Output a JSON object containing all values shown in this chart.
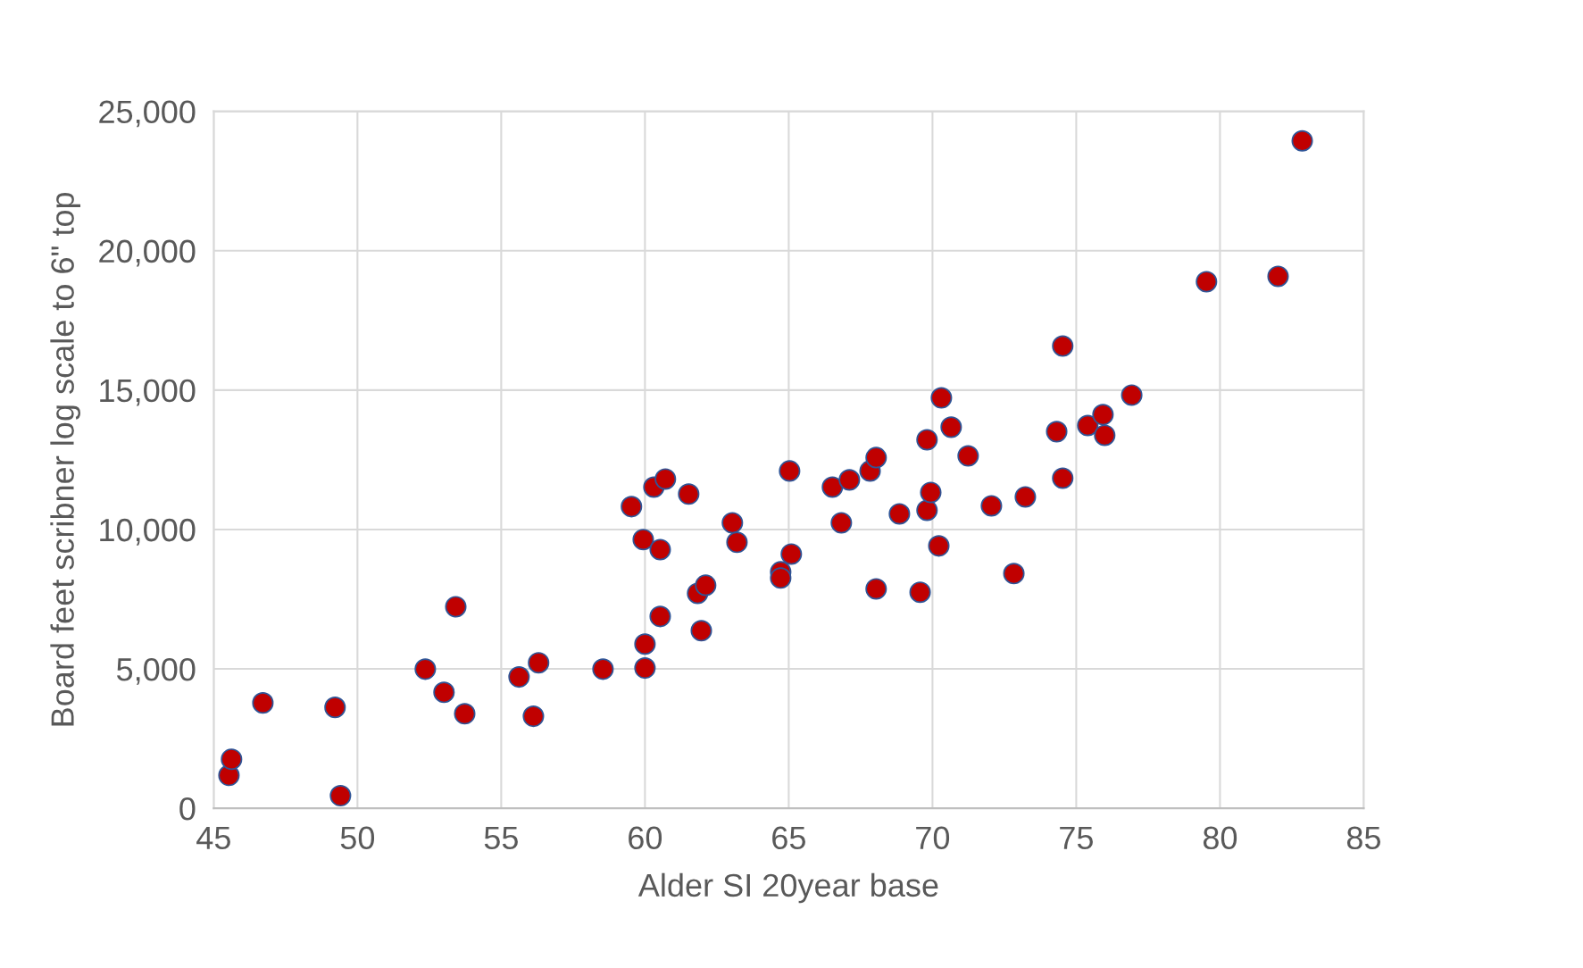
{
  "chart_data": {
    "type": "scatter",
    "xlabel": "Alder SI 20year base",
    "ylabel": "Board feet scribner log scale to 6\" top",
    "x": [
      45.53,
      45.62,
      46.71,
      49.22,
      49.41,
      52.36,
      53.01,
      53.42,
      53.73,
      55.62,
      56.12,
      56.3,
      58.54,
      59.53,
      59.94,
      60.0,
      60.0,
      60.31,
      60.53,
      60.53,
      60.71,
      61.52,
      61.83,
      61.96,
      62.11,
      63.04,
      63.2,
      64.72,
      64.72,
      65.03,
      65.09,
      66.52,
      66.83,
      67.11,
      67.83,
      68.04,
      68.04,
      68.85,
      69.57,
      69.81,
      69.81,
      69.94,
      70.22,
      70.31,
      70.65,
      71.24,
      72.05,
      72.83,
      73.23,
      74.32,
      74.53,
      74.53,
      75.4,
      75.93,
      75.99,
      76.93,
      79.53,
      82.02,
      82.86
    ],
    "series": [
      {
        "color": "#c00000",
        "values": [
          1180,
          1760,
          3780,
          3620,
          450,
          4990,
          4160,
          7230,
          3390,
          4710,
          3300,
          5220,
          4990,
          10820,
          9640,
          5890,
          5030,
          11520,
          9280,
          6880,
          11810,
          11270,
          7710,
          6370,
          8000,
          10240,
          9540,
          8480,
          8260,
          12100,
          9120,
          11520,
          10240,
          11780,
          12100,
          12580,
          7870,
          10560,
          7750,
          13220,
          10690,
          11330,
          9410,
          14720,
          13670,
          12640,
          10850,
          8420,
          11170,
          13510,
          16580,
          11840,
          13730,
          14120,
          13380,
          14820,
          18890,
          19080,
          23940
        ]
      }
    ],
    "xlim": [
      45,
      85
    ],
    "xticks": [
      45,
      50,
      55,
      60,
      65,
      70,
      75,
      80,
      85
    ],
    "ylim": [
      0,
      25000
    ],
    "yticks": [
      {
        "value": 0,
        "label": "0"
      },
      {
        "value": 5000,
        "label": "5,000"
      },
      {
        "value": 10000,
        "label": "10,000"
      },
      {
        "value": 15000,
        "label": "15,000"
      },
      {
        "value": 20000,
        "label": "20,000"
      },
      {
        "value": 25000,
        "label": "25,000"
      }
    ],
    "grid": true,
    "marker": "circle"
  }
}
